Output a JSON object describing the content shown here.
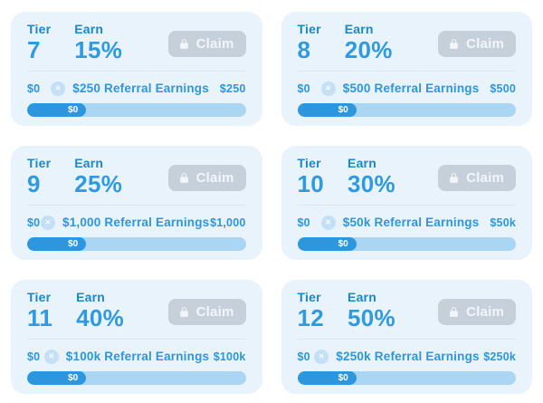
{
  "theme": {
    "accent_blue": "#2e96dd",
    "number_blue": "#2f9ae2",
    "label_blue": "#1e86cc",
    "card_bg": "#e8f3fb",
    "claim_bg": "#c6d0da",
    "claim_text": "#f2f6fa",
    "track": "#abd6f3",
    "fill": "#2e96dd",
    "divider": "#dce8f1",
    "coin_bg": "#c3e0f7",
    "bar_text": "#ffffff",
    "page_bg": "#ffffff"
  },
  "cards": [
    {
      "tier_label": "Tier",
      "tier_value": "7",
      "earn_label": "Earn",
      "earn_value": "15%",
      "claim_label": "Claim",
      "progress": {
        "left_value": "$0",
        "center_label": "$250 Referral Earnings",
        "right_value": "$250",
        "bar_value": "$0",
        "fill_percent": 27
      }
    },
    {
      "tier_label": "Tier",
      "tier_value": "8",
      "earn_label": "Earn",
      "earn_value": "20%",
      "claim_label": "Claim",
      "progress": {
        "left_value": "$0",
        "center_label": "$500 Referral Earnings",
        "right_value": "$500",
        "bar_value": "$0",
        "fill_percent": 27
      }
    },
    {
      "tier_label": "Tier",
      "tier_value": "9",
      "earn_label": "Earn",
      "earn_value": "25%",
      "claim_label": "Claim",
      "progress": {
        "left_value": "$0",
        "center_label": "$1,000 Referral Earnings",
        "right_value": "$1,000",
        "bar_value": "$0",
        "fill_percent": 27
      }
    },
    {
      "tier_label": "Tier",
      "tier_value": "10",
      "earn_label": "Earn",
      "earn_value": "30%",
      "claim_label": "Claim",
      "progress": {
        "left_value": "$0",
        "center_label": "$50k Referral Earnings",
        "right_value": "$50k",
        "bar_value": "$0",
        "fill_percent": 27
      }
    },
    {
      "tier_label": "Tier",
      "tier_value": "11",
      "earn_label": "Earn",
      "earn_value": "40%",
      "claim_label": "Claim",
      "progress": {
        "left_value": "$0",
        "center_label": "$100k Referral Earnings",
        "right_value": "$100k",
        "bar_value": "$0",
        "fill_percent": 27
      }
    },
    {
      "tier_label": "Tier",
      "tier_value": "12",
      "earn_label": "Earn",
      "earn_value": "50%",
      "claim_label": "Claim",
      "progress": {
        "left_value": "$0",
        "center_label": "$250k Referral Earnings",
        "right_value": "$250k",
        "bar_value": "$0",
        "fill_percent": 27
      }
    }
  ]
}
